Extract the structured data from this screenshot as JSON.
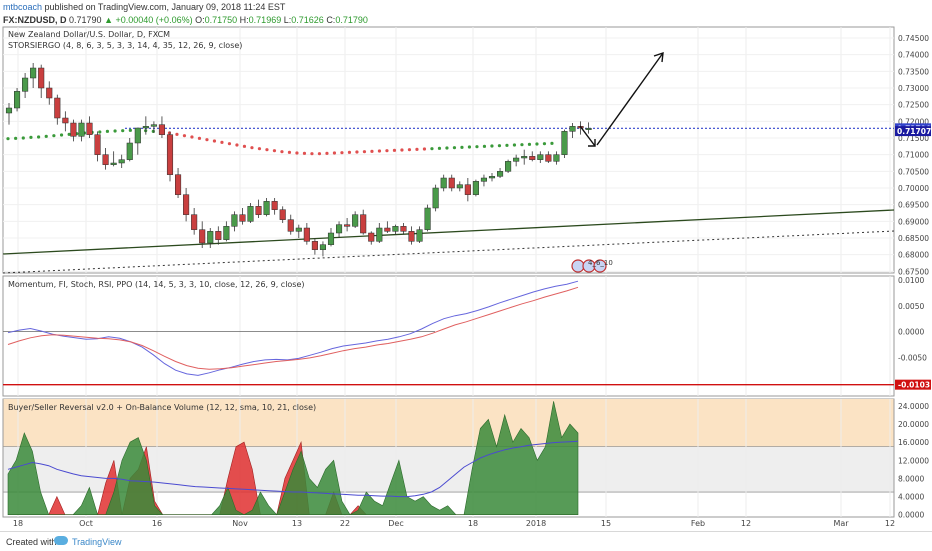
{
  "header": {
    "author": "mtbcoach",
    "published": "published on TradingView.com, January 09, 2018 11:24 EST",
    "symbol": "FX:NZDUSD, D",
    "last": "0.71790",
    "change": "+0.00040 (+0.06%)",
    "o_label": "O:",
    "o": "0.71750",
    "h_label": "H:",
    "h": "0.71969",
    "l_label": "L:",
    "l": "0.71626",
    "c_label": "C:",
    "c": "0.71790"
  },
  "main_pane": {
    "title": "New Zealand Dollar/U.S. Dollar, D, FXCM",
    "indicator": "STORSIERGO (4, 8, 6, 3, 5, 3, 3, 14, 4, 35, 12, 26, 9, close)",
    "earnings_badge": "4_6_10"
  },
  "momentum_pane": {
    "title": "Momentum, FI, Stoch, RSI, PPO (14, 14, 5, 3, 3, 10, close, 12, 26, 9, close)"
  },
  "volume_pane": {
    "title": "Buyer/Seller Reversal v2.0 + On-Balance Volume (12, 12, sma, 10, 21, close)"
  },
  "footer": {
    "created_with": "Created with",
    "brand": "TradingView"
  },
  "colors": {
    "up": "#4a9a4a",
    "down": "#c93f3f",
    "ma_green": "#3a9a3a",
    "ma_red": "#e05050",
    "trendline": "#2c4a1e",
    "blue_line": "#3344cc",
    "red_level": "#d01010",
    "orange_zone": "#fbe3c4",
    "grey_zone": "#eeeeee",
    "area_green": "#3a8a3a",
    "area_red": "#e03030"
  },
  "chart_data": [
    {
      "type": "candlestick",
      "yaxis_ticks": [
        "0.74500",
        "0.74000",
        "0.73500",
        "0.73000",
        "0.72500",
        "0.72000",
        "0.71500",
        "0.71000",
        "0.70500",
        "0.70000",
        "0.69500",
        "0.69000",
        "0.68500",
        "0.68000",
        "0.67500"
      ],
      "ylim": [
        0.6745,
        0.7483
      ],
      "price_labels": [
        "0.71790",
        "0.71707"
      ],
      "candles": [
        [
          0.7225,
          0.7255,
          0.719,
          0.724
        ],
        [
          0.724,
          0.73,
          0.723,
          0.729
        ],
        [
          0.729,
          0.7345,
          0.727,
          0.733
        ],
        [
          0.733,
          0.7375,
          0.73,
          0.736
        ],
        [
          0.736,
          0.737,
          0.727,
          0.73
        ],
        [
          0.73,
          0.732,
          0.725,
          0.727
        ],
        [
          0.727,
          0.728,
          0.719,
          0.721
        ],
        [
          0.721,
          0.723,
          0.717,
          0.7195
        ],
        [
          0.7195,
          0.7205,
          0.714,
          0.7155
        ],
        [
          0.7155,
          0.7205,
          0.714,
          0.7195
        ],
        [
          0.7195,
          0.7215,
          0.715,
          0.716
        ],
        [
          0.716,
          0.717,
          0.708,
          0.71
        ],
        [
          0.71,
          0.712,
          0.7055,
          0.707
        ],
        [
          0.707,
          0.711,
          0.7065,
          0.7075
        ],
        [
          0.7075,
          0.71,
          0.706,
          0.7085
        ],
        [
          0.7085,
          0.715,
          0.708,
          0.7135
        ],
        [
          0.7135,
          0.718,
          0.71,
          0.718
        ],
        [
          0.718,
          0.7215,
          0.716,
          0.7185
        ],
        [
          0.7185,
          0.72,
          0.7165,
          0.719
        ],
        [
          0.719,
          0.7215,
          0.715,
          0.716
        ],
        [
          0.716,
          0.717,
          0.702,
          0.704
        ],
        [
          0.704,
          0.706,
          0.697,
          0.698
        ],
        [
          0.698,
          0.7,
          0.69,
          0.692
        ],
        [
          0.692,
          0.694,
          0.686,
          0.6875
        ],
        [
          0.6875,
          0.69,
          0.682,
          0.6835
        ],
        [
          0.6835,
          0.688,
          0.682,
          0.687
        ],
        [
          0.687,
          0.6885,
          0.683,
          0.6845
        ],
        [
          0.6845,
          0.69,
          0.684,
          0.6885
        ],
        [
          0.6885,
          0.693,
          0.687,
          0.692
        ],
        [
          0.692,
          0.694,
          0.689,
          0.69
        ],
        [
          0.69,
          0.6955,
          0.6895,
          0.6945
        ],
        [
          0.6945,
          0.6965,
          0.691,
          0.692
        ],
        [
          0.692,
          0.697,
          0.6915,
          0.696
        ],
        [
          0.696,
          0.697,
          0.692,
          0.6935
        ],
        [
          0.6935,
          0.6945,
          0.6895,
          0.6905
        ],
        [
          0.6905,
          0.692,
          0.686,
          0.687
        ],
        [
          0.687,
          0.689,
          0.685,
          0.688
        ],
        [
          0.688,
          0.6895,
          0.683,
          0.684
        ],
        [
          0.684,
          0.685,
          0.68,
          0.6815
        ],
        [
          0.6815,
          0.684,
          0.6795,
          0.683
        ],
        [
          0.683,
          0.688,
          0.6825,
          0.6865
        ],
        [
          0.6865,
          0.69,
          0.685,
          0.689
        ],
        [
          0.689,
          0.691,
          0.687,
          0.6885
        ],
        [
          0.6885,
          0.693,
          0.688,
          0.692
        ],
        [
          0.692,
          0.6935,
          0.686,
          0.6865
        ],
        [
          0.6865,
          0.687,
          0.683,
          0.684
        ],
        [
          0.684,
          0.6895,
          0.6835,
          0.688
        ],
        [
          0.688,
          0.69,
          0.6865,
          0.687
        ],
        [
          0.687,
          0.689,
          0.686,
          0.6885
        ],
        [
          0.6885,
          0.6895,
          0.686,
          0.687
        ],
        [
          0.687,
          0.6885,
          0.683,
          0.684
        ],
        [
          0.684,
          0.6885,
          0.6835,
          0.6875
        ],
        [
          0.6875,
          0.695,
          0.687,
          0.694
        ],
        [
          0.694,
          0.701,
          0.693,
          0.7
        ],
        [
          0.7,
          0.704,
          0.699,
          0.703
        ],
        [
          0.703,
          0.704,
          0.699,
          0.7
        ],
        [
          0.7,
          0.702,
          0.699,
          0.701
        ],
        [
          0.701,
          0.703,
          0.696,
          0.698
        ],
        [
          0.698,
          0.7025,
          0.6975,
          0.702
        ],
        [
          0.702,
          0.704,
          0.7005,
          0.703
        ],
        [
          0.703,
          0.7045,
          0.702,
          0.7035
        ],
        [
          0.7035,
          0.706,
          0.703,
          0.705
        ],
        [
          0.705,
          0.7085,
          0.7045,
          0.708
        ],
        [
          0.708,
          0.71,
          0.7065,
          0.709
        ],
        [
          0.709,
          0.7115,
          0.707,
          0.7095
        ],
        [
          0.7095,
          0.711,
          0.708,
          0.7085
        ],
        [
          0.7085,
          0.711,
          0.7075,
          0.71
        ],
        [
          0.71,
          0.711,
          0.7075,
          0.708
        ],
        [
          0.708,
          0.711,
          0.707,
          0.71
        ],
        [
          0.71,
          0.7175,
          0.709,
          0.717
        ],
        [
          0.717,
          0.7195,
          0.715,
          0.7185
        ],
        [
          0.7185,
          0.72,
          0.716,
          0.718
        ],
        [
          0.7175,
          0.7197,
          0.7163,
          0.7179
        ]
      ],
      "ma_upper": [
        0.7148,
        0.7149,
        0.715,
        0.7152,
        0.7153,
        0.7155,
        0.7157,
        0.7159,
        0.7161,
        0.7163,
        0.7165,
        0.7167,
        0.7168,
        0.717,
        0.7171,
        0.7172,
        0.7173,
        0.7173,
        0.7172,
        0.717
      ],
      "ma_lower": [
        0.7168,
        0.7165,
        0.7161,
        0.7157,
        0.7153,
        0.7149,
        0.7145,
        0.7141,
        0.7137,
        0.7133,
        0.7129,
        0.7125,
        0.7121,
        0.7118,
        0.7115,
        0.7112,
        0.7109,
        0.7107,
        0.7105,
        0.7104,
        0.7103,
        0.7103,
        0.7104,
        0.7105,
        0.7106,
        0.7107,
        0.7108,
        0.7109,
        0.711,
        0.7111,
        0.7112,
        0.7113,
        0.7114,
        0.7115,
        0.7116,
        0.7117,
        0.7118,
        0.7119,
        0.712,
        0.7121,
        0.7122,
        0.7123,
        0.7124,
        0.7125,
        0.7126,
        0.7127,
        0.7128,
        0.7129,
        0.713,
        0.7131,
        0.7132,
        0.7133,
        0.7134
      ],
      "levels": [
        0.7179,
        0.71707
      ]
    },
    {
      "type": "line",
      "yaxis_ticks": [
        "0.0100",
        "0.0050",
        "0.0000",
        "-0.0050"
      ],
      "ylim": [
        -0.0125,
        0.0108
      ],
      "price_labels": [
        "-0.0103"
      ],
      "level": -0.0103,
      "zero": 0.0,
      "series": [
        {
          "values": [
            -0.0002,
            0.0003,
            0.0006,
            0.0001,
            -0.0005,
            -0.0009,
            -0.0012,
            -0.0015,
            -0.0014,
            -0.001,
            -0.0013,
            -0.002,
            -0.003,
            -0.0045,
            -0.0062,
            -0.0075,
            -0.0082,
            -0.0085,
            -0.008,
            -0.0074,
            -0.0069,
            -0.0063,
            -0.0058,
            -0.0055,
            -0.0054,
            -0.0055,
            -0.0052,
            -0.0046,
            -0.004,
            -0.0033,
            -0.0028,
            -0.0025,
            -0.0022,
            -0.0018,
            -0.0015,
            -0.001,
            -0.0004,
            0.0005,
            0.0016,
            0.0025,
            0.0031,
            0.0035,
            0.0041,
            0.0048,
            0.0056,
            0.0063,
            0.007,
            0.0077,
            0.0083,
            0.0088,
            0.0092,
            0.0098
          ]
        },
        {
          "values": [
            -0.0025,
            -0.0018,
            -0.0012,
            -0.0008,
            -0.0006,
            -0.0007,
            -0.0009,
            -0.0011,
            -0.0013,
            -0.0014,
            -0.0016,
            -0.002,
            -0.0027,
            -0.0037,
            -0.0048,
            -0.0058,
            -0.0066,
            -0.0071,
            -0.0073,
            -0.0072,
            -0.007,
            -0.0067,
            -0.0064,
            -0.0061,
            -0.0058,
            -0.0056,
            -0.0054,
            -0.0051,
            -0.0047,
            -0.0042,
            -0.0037,
            -0.0033,
            -0.003,
            -0.0026,
            -0.0023,
            -0.0019,
            -0.0015,
            -0.001,
            -0.0003,
            0.0005,
            0.0013,
            0.0019,
            0.0026,
            0.0033,
            0.004,
            0.0047,
            0.0054,
            0.006,
            0.0067,
            0.0073,
            0.0079,
            0.0086
          ]
        }
      ]
    },
    {
      "type": "area",
      "yaxis_ticks": [
        "24.0000",
        "20.0000",
        "16.0000",
        "12.0000",
        "8.0000",
        "4.0000",
        "0.0000"
      ],
      "ylim": [
        -0.5,
        25.5
      ],
      "zones": [
        [
          15,
          25.5
        ],
        [
          5,
          15
        ]
      ],
      "green_area": [
        9,
        12,
        18,
        14,
        5,
        0,
        0,
        0,
        0,
        2,
        6,
        0,
        0,
        5,
        12,
        16,
        17,
        12,
        2,
        0,
        0,
        0,
        0,
        0,
        0,
        0,
        2,
        6,
        1,
        0,
        1,
        5,
        2,
        0,
        5,
        10,
        14,
        8,
        6,
        10,
        12,
        3,
        0,
        1,
        5,
        3,
        2,
        7,
        12,
        4,
        3,
        4,
        2,
        1,
        2,
        0,
        0,
        10,
        19,
        21,
        15,
        22,
        16,
        19,
        17,
        12,
        15,
        25,
        17,
        20,
        18
      ],
      "red_area": [
        0,
        0,
        0,
        0,
        0,
        0,
        4,
        0,
        0,
        0,
        0,
        0,
        7,
        12,
        0,
        8,
        10,
        15,
        3,
        0,
        0,
        0,
        0,
        0,
        0,
        0,
        0,
        8,
        15,
        16,
        10,
        0,
        0,
        0,
        8,
        12,
        16,
        0,
        0,
        0,
        5,
        0,
        0,
        2,
        0,
        0,
        0,
        0,
        0,
        0,
        0,
        0,
        0,
        0,
        0,
        0,
        0,
        0,
        0,
        0,
        0,
        0,
        0,
        0,
        0,
        0,
        0,
        0,
        0,
        0,
        0
      ],
      "series": [
        {
          "values": [
            10,
            10.5,
            11,
            11.5,
            11.2,
            10.8,
            10,
            9.5,
            9,
            8.6,
            8.4,
            8.2,
            8,
            8,
            7.8,
            7.5,
            7.4,
            7.3,
            7.2,
            7,
            6.8,
            6.6,
            6.4,
            6.2,
            6.1,
            6,
            5.9,
            5.8,
            5.7,
            5.6,
            5.5,
            5.4,
            5.3,
            5.2,
            5.1,
            5,
            5,
            4.9,
            4.8,
            4.7,
            4.6,
            4.5,
            4.4,
            4.3,
            4.3,
            4.2,
            4.1,
            4.1,
            4,
            4,
            4.2,
            4.5,
            5,
            6,
            7.5,
            9,
            10.5,
            11.5,
            12.5,
            13.2,
            13.8,
            14.3,
            14.7,
            15,
            15.3,
            15.5,
            15.7,
            15.9,
            16,
            16.1,
            16.2
          ]
        }
      ]
    }
  ],
  "xaxis": {
    "ticks": [
      "18",
      "Oct",
      "16",
      "Nov",
      "13",
      "22",
      "Dec",
      "18",
      "2018",
      "15",
      "Feb",
      "12",
      "Mar",
      "12"
    ]
  }
}
